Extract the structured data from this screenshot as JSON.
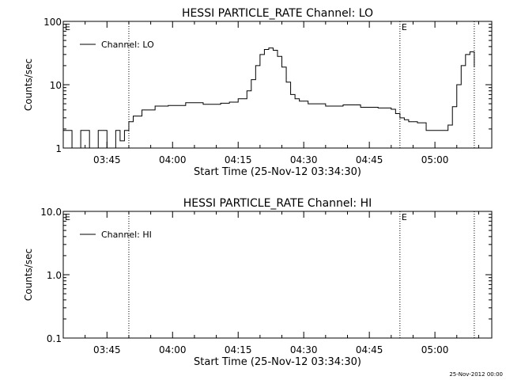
{
  "footer_stamp": "25-Nov-2012 00:00",
  "chart_data": [
    {
      "type": "line",
      "title": "HESSI PARTICLE_RATE Channel: LO",
      "xlabel": "Start Time (25-Nov-12 03:34:30)",
      "ylabel": "Counts/sec",
      "x_ticks": [
        "03:45",
        "04:00",
        "04:15",
        "04:30",
        "04:45",
        "05:00"
      ],
      "x_range": [
        "03:35",
        "05:13"
      ],
      "y_scale": "log",
      "ylim": [
        1,
        100
      ],
      "y_ticks": [
        "1",
        "10",
        "100"
      ],
      "grid": false,
      "legend": {
        "placement": "top-left",
        "entries": [
          "Channel: LO"
        ]
      },
      "annotations": [
        {
          "label": "E",
          "time": "03:35"
        },
        {
          "label": "E",
          "time": "04:52"
        }
      ],
      "dotted_lines": [
        "03:50",
        "04:52",
        "05:09"
      ],
      "series": [
        {
          "name": "Channel: LO",
          "x": [
            "03:35",
            "03:37",
            "03:39",
            "03:41",
            "03:43",
            "03:45",
            "03:47",
            "03:48",
            "03:49",
            "03:50",
            "03:51",
            "03:53",
            "03:56",
            "03:59",
            "04:03",
            "04:07",
            "04:11",
            "04:13",
            "04:15",
            "04:17",
            "04:18",
            "04:19",
            "04:20",
            "04:21",
            "04:22",
            "04:23",
            "04:24",
            "04:25",
            "04:26",
            "04:27",
            "04:28",
            "04:29",
            "04:31",
            "04:35",
            "04:39",
            "04:43",
            "04:47",
            "04:50",
            "04:51",
            "04:52",
            "04:53",
            "04:54",
            "04:56",
            "04:58",
            "05:00",
            "05:02",
            "05:03",
            "05:04",
            "05:05",
            "05:06",
            "05:07",
            "05:08",
            "05:09"
          ],
          "values": [
            1.9,
            1.0,
            1.9,
            1.0,
            1.9,
            1.0,
            1.9,
            1.3,
            1.9,
            2.6,
            3.2,
            4.0,
            4.6,
            4.7,
            5.2,
            4.9,
            5.1,
            5.3,
            6.0,
            8.0,
            12,
            20,
            30,
            36,
            38,
            35,
            28,
            19,
            11,
            7,
            6,
            5.5,
            5.0,
            4.6,
            4.8,
            4.4,
            4.3,
            4.1,
            3.5,
            3.0,
            2.8,
            2.6,
            2.5,
            1.9,
            1.9,
            1.9,
            2.3,
            4.5,
            10,
            20,
            30,
            33,
            19
          ]
        }
      ]
    },
    {
      "type": "line",
      "title": "HESSI PARTICLE_RATE Channel: HI",
      "xlabel": "Start Time (25-Nov-12 03:34:30)",
      "ylabel": "Counts/sec",
      "x_ticks": [
        "03:45",
        "04:00",
        "04:15",
        "04:30",
        "04:45",
        "05:00"
      ],
      "x_range": [
        "03:35",
        "05:13"
      ],
      "y_scale": "log",
      "ylim": [
        0.1,
        10
      ],
      "y_ticks": [
        "0.1",
        "1.0",
        "10.0"
      ],
      "grid": false,
      "legend": {
        "placement": "top-left",
        "entries": [
          "Channel: HI"
        ]
      },
      "annotations": [
        {
          "label": "E",
          "time": "03:35"
        },
        {
          "label": "E",
          "time": "04:52"
        }
      ],
      "dotted_lines": [
        "03:50",
        "04:52",
        "05:09"
      ],
      "series": [
        {
          "name": "Channel: HI",
          "x": [],
          "values": []
        }
      ]
    }
  ]
}
